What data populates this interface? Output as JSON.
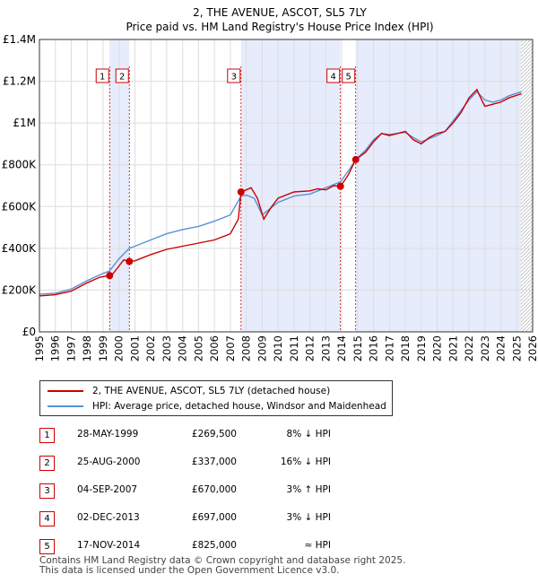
{
  "chart_data": {
    "type": "line",
    "title": "2, THE AVENUE, ASCOT, SL5 7LY",
    "subtitle": "Price paid vs. HM Land Registry's House Price Index (HPI)",
    "xlim": [
      1995,
      2026
    ],
    "ylim": [
      0,
      1400000
    ],
    "x_ticks": [
      "1995",
      "1996",
      "1997",
      "1998",
      "1999",
      "2000",
      "2001",
      "2002",
      "2003",
      "2004",
      "2005",
      "2006",
      "2007",
      "2008",
      "2009",
      "2010",
      "2011",
      "2012",
      "2013",
      "2014",
      "2015",
      "2016",
      "2017",
      "2018",
      "2019",
      "2020",
      "2021",
      "2022",
      "2023",
      "2024",
      "2025",
      "2026"
    ],
    "y_ticks": [
      {
        "value": 0,
        "label": "£0"
      },
      {
        "value": 200000,
        "label": "£200K"
      },
      {
        "value": 400000,
        "label": "£400K"
      },
      {
        "value": 600000,
        "label": "£600K"
      },
      {
        "value": 800000,
        "label": "£800K"
      },
      {
        "value": 1000000,
        "label": "£1M"
      },
      {
        "value": 1200000,
        "label": "£1.2M"
      },
      {
        "value": 1400000,
        "label": "£1.4M"
      }
    ],
    "grid": true,
    "forecast_hatch_from": 2025.25,
    "shaded_ranges": [
      [
        1999.41,
        2000.65
      ],
      [
        2007.67,
        2013.92
      ],
      [
        2014.88,
        2025.25
      ]
    ],
    "series": [
      {
        "name": "2, THE AVENUE, ASCOT, SL5 7LY (detached house)",
        "color": "#cc0000",
        "points": [
          [
            1995,
            172000
          ],
          [
            1996,
            178000
          ],
          [
            1997,
            195000
          ],
          [
            1998,
            235000
          ],
          [
            1998.8,
            262000
          ],
          [
            1999.41,
            269500
          ],
          [
            1999.6,
            276000
          ],
          [
            1999.9,
            305000
          ],
          [
            2000.3,
            345000
          ],
          [
            2000.65,
            337000
          ],
          [
            2001,
            340000
          ],
          [
            2002,
            370000
          ],
          [
            2003,
            395000
          ],
          [
            2004,
            410000
          ],
          [
            2005,
            425000
          ],
          [
            2006,
            440000
          ],
          [
            2007,
            470000
          ],
          [
            2007.5,
            540000
          ],
          [
            2007.67,
            670000
          ],
          [
            2008,
            680000
          ],
          [
            2008.3,
            690000
          ],
          [
            2008.7,
            640000
          ],
          [
            2009.1,
            540000
          ],
          [
            2009.6,
            600000
          ],
          [
            2010,
            640000
          ],
          [
            2011,
            670000
          ],
          [
            2012,
            675000
          ],
          [
            2012.5,
            685000
          ],
          [
            2013,
            680000
          ],
          [
            2013.5,
            700000
          ],
          [
            2013.92,
            697000
          ],
          [
            2014.4,
            750000
          ],
          [
            2014.88,
            825000
          ],
          [
            2015.5,
            860000
          ],
          [
            2016,
            910000
          ],
          [
            2016.5,
            950000
          ],
          [
            2017,
            940000
          ],
          [
            2017.5,
            950000
          ],
          [
            2018,
            960000
          ],
          [
            2018.5,
            920000
          ],
          [
            2019,
            900000
          ],
          [
            2019.5,
            930000
          ],
          [
            2020,
            950000
          ],
          [
            2020.5,
            960000
          ],
          [
            2021,
            1000000
          ],
          [
            2021.5,
            1050000
          ],
          [
            2022,
            1120000
          ],
          [
            2022.5,
            1160000
          ],
          [
            2022.8,
            1110000
          ],
          [
            2023,
            1080000
          ],
          [
            2023.5,
            1090000
          ],
          [
            2024,
            1100000
          ],
          [
            2024.5,
            1120000
          ],
          [
            2025.3,
            1140000
          ]
        ]
      },
      {
        "name": "HPI: Average price, detached house, Windsor and Maidenhead",
        "color": "#5b8fd6",
        "points": [
          [
            1995,
            180000
          ],
          [
            1996,
            185000
          ],
          [
            1997,
            205000
          ],
          [
            1998,
            245000
          ],
          [
            1999,
            280000
          ],
          [
            1999.41,
            292000
          ],
          [
            2000,
            350000
          ],
          [
            2000.65,
            400000
          ],
          [
            2001,
            410000
          ],
          [
            2002,
            440000
          ],
          [
            2003,
            470000
          ],
          [
            2004,
            490000
          ],
          [
            2005,
            505000
          ],
          [
            2006,
            530000
          ],
          [
            2007,
            560000
          ],
          [
            2007.67,
            650000
          ],
          [
            2008,
            655000
          ],
          [
            2008.5,
            640000
          ],
          [
            2009,
            560000
          ],
          [
            2009.5,
            590000
          ],
          [
            2010,
            620000
          ],
          [
            2011,
            650000
          ],
          [
            2012,
            660000
          ],
          [
            2013,
            690000
          ],
          [
            2013.92,
            718000
          ],
          [
            2014.5,
            780000
          ],
          [
            2014.88,
            825000
          ],
          [
            2015.5,
            870000
          ],
          [
            2016,
            920000
          ],
          [
            2016.5,
            950000
          ],
          [
            2017,
            945000
          ],
          [
            2018,
            955000
          ],
          [
            2018.5,
            930000
          ],
          [
            2019,
            910000
          ],
          [
            2020,
            940000
          ],
          [
            2020.5,
            960000
          ],
          [
            2021,
            1010000
          ],
          [
            2021.5,
            1060000
          ],
          [
            2022,
            1110000
          ],
          [
            2022.5,
            1150000
          ],
          [
            2023,
            1110000
          ],
          [
            2023.5,
            1100000
          ],
          [
            2024,
            1110000
          ],
          [
            2024.5,
            1130000
          ],
          [
            2025.3,
            1150000
          ]
        ]
      }
    ],
    "markers": [
      {
        "label": "1",
        "x": 1999.41,
        "y": 269500
      },
      {
        "label": "2",
        "x": 2000.65,
        "y": 337000
      },
      {
        "label": "3",
        "x": 2007.67,
        "y": 670000
      },
      {
        "label": "4",
        "x": 2013.92,
        "y": 697000
      },
      {
        "label": "5",
        "x": 2014.88,
        "y": 825000
      }
    ]
  },
  "legend": {
    "property_label": "2, THE AVENUE, ASCOT, SL5 7LY (detached house)",
    "hpi_label": "HPI: Average price, detached house, Windsor and Maidenhead",
    "property_color": "#cc0000",
    "hpi_color": "#5b8fd6"
  },
  "sales": [
    {
      "num": "1",
      "date": "28-MAY-1999",
      "price": "£269,500",
      "hpi": "8% ↓ HPI"
    },
    {
      "num": "2",
      "date": "25-AUG-2000",
      "price": "£337,000",
      "hpi": "16% ↓ HPI"
    },
    {
      "num": "3",
      "date": "04-SEP-2007",
      "price": "£670,000",
      "hpi": "3% ↑ HPI"
    },
    {
      "num": "4",
      "date": "02-DEC-2013",
      "price": "£697,000",
      "hpi": "3% ↓ HPI"
    },
    {
      "num": "5",
      "date": "17-NOV-2014",
      "price": "£825,000",
      "hpi": "≈ HPI"
    }
  ],
  "footer": {
    "line1": "Contains HM Land Registry data © Crown copyright and database right 2025.",
    "line2": "This data is licensed under the Open Government Licence v3.0."
  }
}
